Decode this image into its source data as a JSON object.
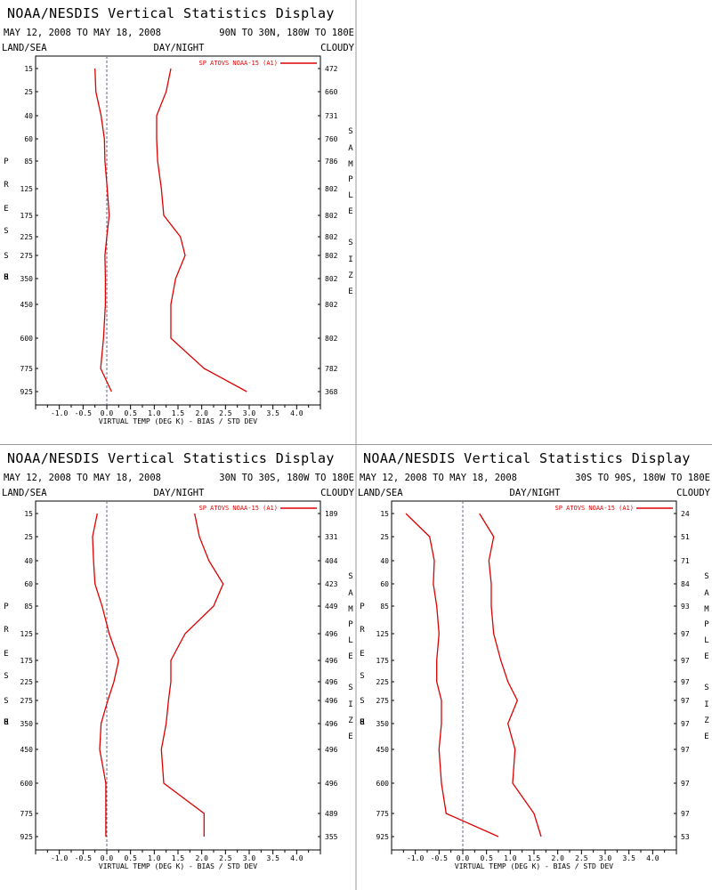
{
  "panel_title": "NOAA/NESDIS Vertical Statistics Display",
  "date_range": "MAY 12, 2008 TO MAY 18, 2008",
  "header_left": "LAND/SEA",
  "header_center": "DAY/NIGHT",
  "header_right": "CLOUDY",
  "left_axis_label": "PRESSURE",
  "right_axis_label": "SAMPLE SIZE",
  "colors": {
    "series": "#dd0000",
    "zero_line": "#6a6a8a",
    "frame": "#000000",
    "divider": "#999999"
  },
  "chart_data": [
    {
      "type": "line",
      "region": "90N TO 30N, 180W TO 180E",
      "xlabel": "VIRTUAL TEMP (DEG K) - BIAS / STD DEV",
      "ylabel": "PRESSURE",
      "xlim": [
        -1.5,
        4.5
      ],
      "xticks": [
        "-1.0",
        "-0.5",
        "0.0",
        "0.5",
        "1.0",
        "1.5",
        "2.0",
        "2.5",
        "3.0",
        "3.5",
        "4.0"
      ],
      "legend_position": "top-right",
      "pressure_levels": [
        "15",
        "25",
        "40",
        "60",
        "85",
        "125",
        "175",
        "225",
        "275",
        "350",
        "450",
        "600",
        "775",
        "925"
      ],
      "sample_size": [
        "472",
        "660",
        "731",
        "760",
        "786",
        "802",
        "802",
        "802",
        "802",
        "802",
        "802",
        "802",
        "782",
        "368"
      ],
      "series": [
        {
          "name": "SP ATOVS NOAA-15 (A1)",
          "bias": [
            -0.25,
            -0.23,
            -0.12,
            -0.05,
            -0.04,
            0.01,
            0.05,
            0.0,
            -0.04,
            -0.03,
            -0.03,
            -0.07,
            -0.13,
            0.1
          ],
          "std_dev": [
            1.35,
            1.25,
            1.05,
            1.05,
            1.07,
            1.15,
            1.2,
            1.55,
            1.65,
            1.45,
            1.35,
            1.35,
            2.05,
            2.95
          ]
        }
      ]
    },
    {
      "type": "line",
      "region": "30N TO 30S, 180W TO 180E",
      "xlabel": "VIRTUAL TEMP (DEG K) - BIAS / STD DEV",
      "ylabel": "PRESSURE",
      "xlim": [
        -1.5,
        4.5
      ],
      "xticks": [
        "-1.0",
        "-0.5",
        "0.0",
        "0.5",
        "1.0",
        "1.5",
        "2.0",
        "2.5",
        "3.0",
        "3.5",
        "4.0"
      ],
      "legend_position": "top-right",
      "pressure_levels": [
        "15",
        "25",
        "40",
        "60",
        "85",
        "125",
        "175",
        "225",
        "275",
        "350",
        "450",
        "600",
        "775",
        "925"
      ],
      "sample_size": [
        "189",
        "331",
        "404",
        "423",
        "449",
        "496",
        "496",
        "496",
        "496",
        "496",
        "496",
        "496",
        "489",
        "355"
      ],
      "series": [
        {
          "name": "SP ATOVS NOAA-15 (A1)",
          "bias": [
            -0.2,
            -0.3,
            -0.28,
            -0.25,
            -0.1,
            0.05,
            0.25,
            0.15,
            0.02,
            -0.12,
            -0.15,
            -0.02,
            -0.02,
            -0.02
          ],
          "std_dev": [
            1.85,
            1.95,
            2.15,
            2.45,
            2.25,
            1.65,
            1.35,
            1.35,
            1.3,
            1.25,
            1.15,
            1.2,
            2.05,
            2.05
          ]
        }
      ]
    },
    {
      "type": "line",
      "region": "30S TO 90S, 180W TO 180E",
      "xlabel": "VIRTUAL TEMP (DEG K) - BIAS / STD DEV",
      "ylabel": "PRESSURE",
      "xlim": [
        -1.5,
        4.5
      ],
      "xticks": [
        "-1.0",
        "-0.5",
        "0.0",
        "0.5",
        "1.0",
        "1.5",
        "2.0",
        "2.5",
        "3.0",
        "3.5",
        "4.0"
      ],
      "legend_position": "top-right",
      "pressure_levels": [
        "15",
        "25",
        "40",
        "60",
        "85",
        "125",
        "175",
        "225",
        "275",
        "350",
        "450",
        "600",
        "775",
        "925"
      ],
      "sample_size": [
        "24",
        "51",
        "71",
        "84",
        "93",
        "97",
        "97",
        "97",
        "97",
        "97",
        "97",
        "97",
        "97",
        "53"
      ],
      "series": [
        {
          "name": "SP ATOVS NOAA-15 (A1)",
          "bias": [
            -1.2,
            -0.7,
            -0.6,
            -0.62,
            -0.55,
            -0.5,
            -0.55,
            -0.55,
            -0.45,
            -0.45,
            -0.5,
            -0.45,
            -0.35,
            0.75
          ],
          "std_dev": [
            0.35,
            0.65,
            0.55,
            0.6,
            0.6,
            0.65,
            0.8,
            0.95,
            1.15,
            0.95,
            1.1,
            1.05,
            1.5,
            1.65
          ]
        }
      ]
    }
  ]
}
